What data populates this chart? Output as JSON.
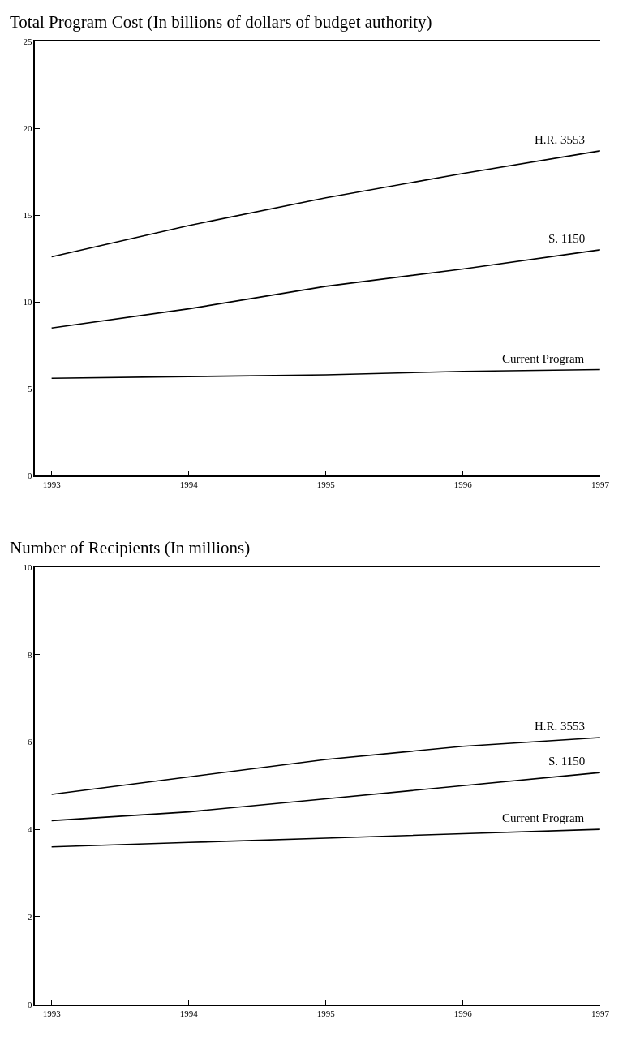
{
  "chart_data": [
    {
      "type": "line",
      "title": "Total Program Cost (In billions of dollars of budget authority)",
      "x": [
        1993,
        1994,
        1995,
        1996,
        1997
      ],
      "xlim": [
        1992.88,
        1997
      ],
      "xticks": [
        1993,
        1994,
        1995,
        1996,
        1997
      ],
      "ylim": [
        0,
        25
      ],
      "yticks": [
        0,
        5,
        10,
        15,
        20,
        25
      ],
      "line_style": "solid",
      "marker": "none",
      "series": [
        {
          "name": "H.R. 3553",
          "color": "#000000",
          "values": [
            12.6,
            14.4,
            16.0,
            17.4,
            18.7
          ]
        },
        {
          "name": "S. 1150",
          "color": "#000000",
          "values": [
            8.5,
            9.6,
            10.9,
            11.9,
            13.0
          ]
        },
        {
          "name": "Current Program",
          "color": "#000000",
          "values": [
            5.6,
            5.7,
            5.8,
            6.0,
            6.1
          ]
        }
      ]
    },
    {
      "type": "line",
      "title": "Number of Recipients (In millions)",
      "x": [
        1993,
        1994,
        1995,
        1996,
        1997
      ],
      "xlim": [
        1992.88,
        1997
      ],
      "xticks": [
        1993,
        1994,
        1995,
        1996,
        1997
      ],
      "ylim": [
        0,
        10
      ],
      "yticks": [
        0,
        2,
        4,
        6,
        8,
        10
      ],
      "line_style": "solid",
      "marker": "none",
      "series": [
        {
          "name": "H.R. 3553",
          "color": "#000000",
          "values": [
            4.8,
            5.2,
            5.6,
            5.9,
            6.1
          ]
        },
        {
          "name": "S. 1150",
          "color": "#000000",
          "values": [
            4.2,
            4.4,
            4.7,
            5.0,
            5.3
          ]
        },
        {
          "name": "Current Program",
          "color": "#000000",
          "values": [
            3.6,
            3.7,
            3.8,
            3.9,
            4.0
          ]
        }
      ]
    }
  ]
}
